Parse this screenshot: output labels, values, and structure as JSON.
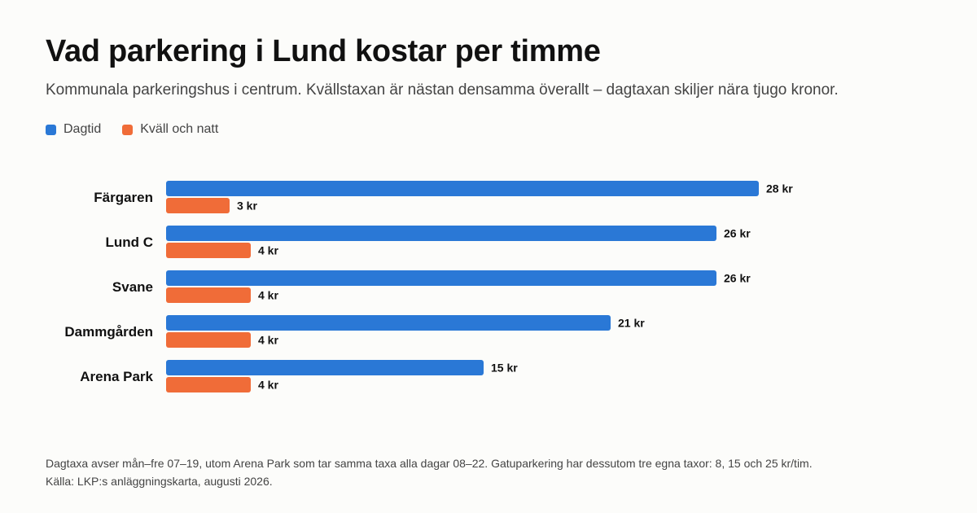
{
  "chart_data": {
    "type": "bar",
    "orientation": "horizontal",
    "title": "Vad parkering i Lund kostar per timme",
    "subtitle": "Kommunala parkeringshus i centrum. Kvällstaxan är nästan densamma överallt – dagtaxan skiljer nära tjugo kronor.",
    "categories": [
      "Färgaren",
      "Lund C",
      "Svane",
      "Dammgården",
      "Arena Park"
    ],
    "unit": "kr",
    "xlim": [
      0,
      28
    ],
    "grid": false,
    "legend_position": "top-left",
    "series": [
      {
        "name": "Dagtid",
        "color": "#2a78d6",
        "values": [
          28,
          26,
          26,
          21,
          15
        ],
        "labels": [
          "28 kr",
          "26 kr",
          "26 kr",
          "21 kr",
          "15 kr"
        ]
      },
      {
        "name": "Kväll och natt",
        "color": "#f06c38",
        "values": [
          3,
          4,
          4,
          4,
          4
        ],
        "labels": [
          "3 kr",
          "4 kr",
          "4 kr",
          "4 kr",
          "4 kr"
        ]
      }
    ]
  },
  "footnote": {
    "line1": "Dagtaxa avser mån–fre 07–19, utom Arena Park som tar samma taxa alla dagar 08–22. Gatuparkering har dessutom tre egna taxor: 8, 15 och 25 kr/tim.",
    "line2": "Källa: LKP:s anläggningskarta, augusti 2026."
  }
}
